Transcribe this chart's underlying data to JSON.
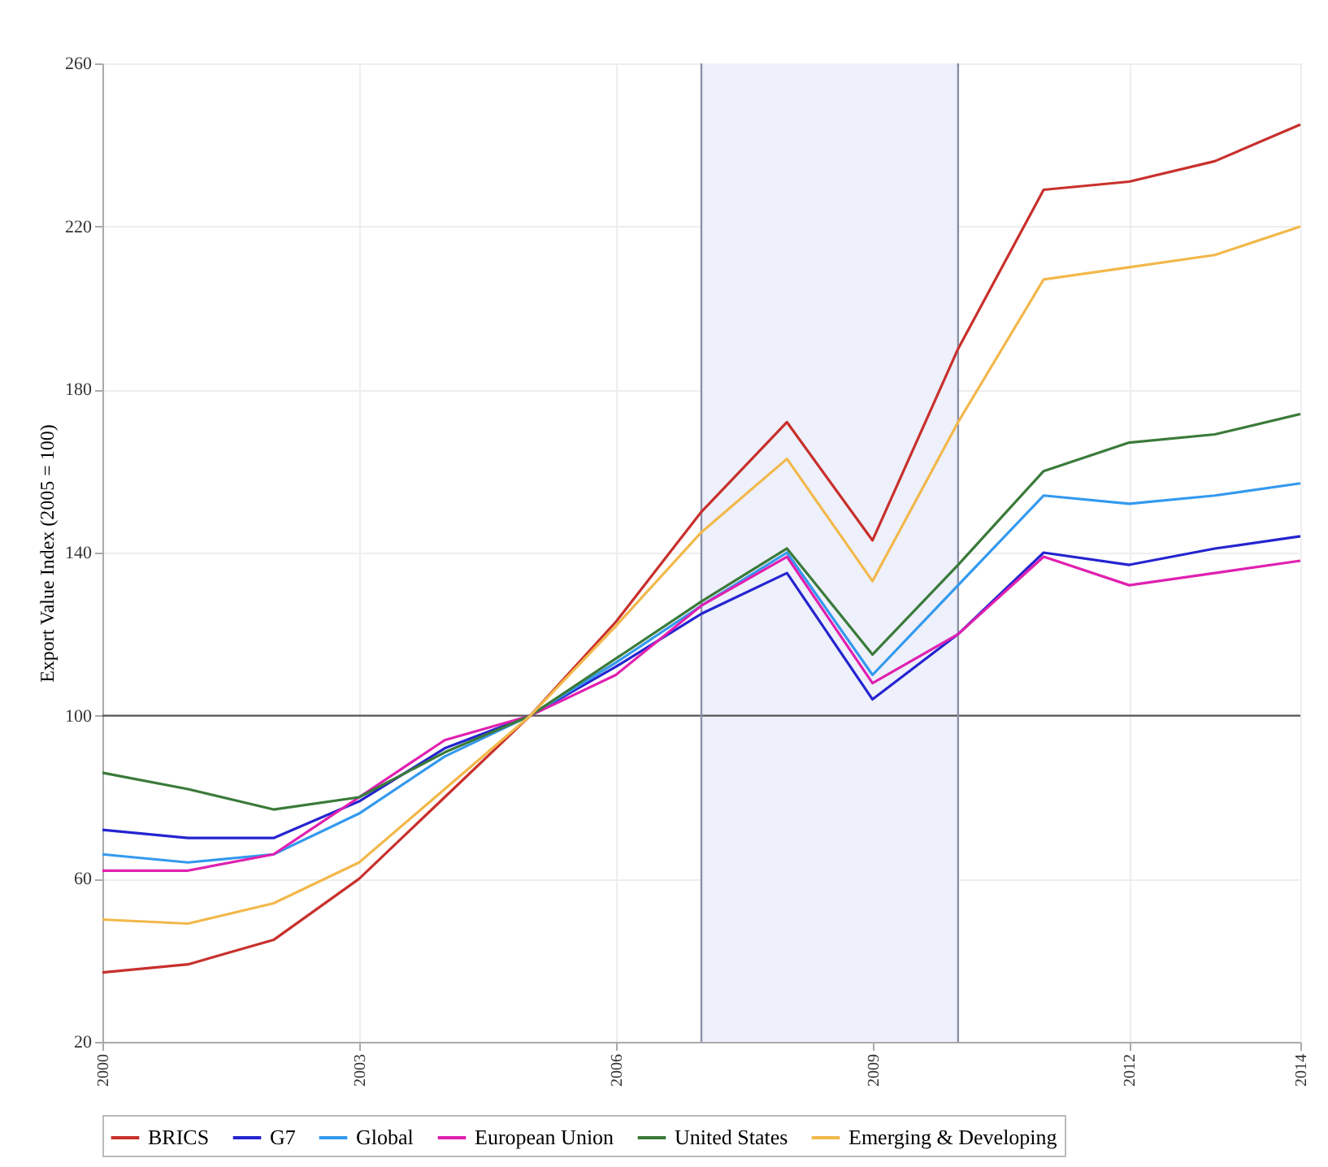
{
  "chart_data": {
    "type": "line",
    "ylabel": "Export Value Index (2005 = 100)",
    "x": [
      2000,
      2001,
      2002,
      2003,
      2004,
      2005,
      2006,
      2007,
      2008,
      2009,
      2010,
      2011,
      2012,
      2013,
      2014
    ],
    "series": [
      {
        "name": "BRICS",
        "color": "#c8302c",
        "values": [
          37,
          39,
          45,
          60,
          80,
          100,
          123,
          150,
          172,
          143,
          190,
          229,
          231,
          236,
          245
        ]
      },
      {
        "name": "G7",
        "color": "#2424d0",
        "values": [
          72,
          70,
          70,
          79,
          92,
          100,
          112,
          125,
          135,
          104,
          120,
          140,
          137,
          141,
          144
        ]
      },
      {
        "name": "Global",
        "color": "#3399ee",
        "values": [
          66,
          64,
          66,
          76,
          90,
          100,
          113,
          127,
          140,
          110,
          132,
          154,
          152,
          154,
          157
        ]
      },
      {
        "name": "European Union",
        "color": "#e020b0",
        "values": [
          62,
          62,
          66,
          80,
          94,
          100,
          110,
          127,
          139,
          108,
          120,
          139,
          132,
          135,
          138
        ]
      },
      {
        "name": "United States",
        "color": "#3a7a3a",
        "values": [
          86,
          82,
          77,
          80,
          91,
          100,
          114,
          128,
          141,
          115,
          137,
          160,
          167,
          169,
          174
        ]
      },
      {
        "name": "Emerging & Developing",
        "color": "#f2b84b",
        "values": [
          50,
          49,
          54,
          64,
          82,
          100,
          122,
          145,
          163,
          133,
          172,
          207,
          210,
          213,
          220
        ]
      }
    ],
    "xlim": [
      2000,
      2014
    ],
    "xticks": [
      2000,
      2003,
      2006,
      2009,
      2012,
      2014
    ],
    "ylim": [
      20,
      260
    ],
    "yticks": [
      20,
      60,
      100,
      140,
      180,
      220,
      260
    ],
    "bands": [
      {
        "axis": "x",
        "from": 2007,
        "to": 2010,
        "color": "#eef0fb"
      }
    ],
    "ref_lines": [
      {
        "axis": "y",
        "value": 100,
        "color": "#555555"
      },
      {
        "axis": "x",
        "value": 2007,
        "color": "#8a90a8"
      },
      {
        "axis": "x",
        "value": 2010,
        "color": "#8a90a8"
      }
    ],
    "grid": true,
    "legend": "bottom",
    "line_style": "solid",
    "marker": "none"
  }
}
